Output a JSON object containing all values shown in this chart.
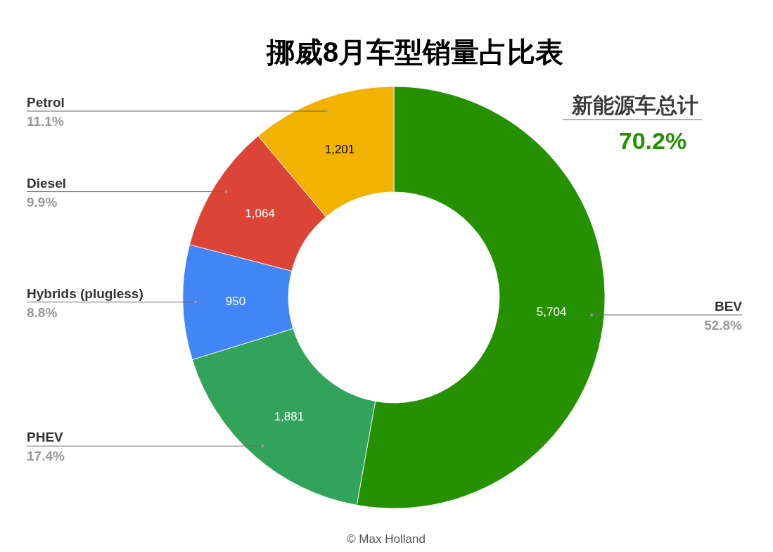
{
  "chart_data": {
    "type": "donut",
    "title": "挪威8月车型销量占比表",
    "categories": [
      "BEV",
      "PHEV",
      "Hybrids (plugless)",
      "Diesel",
      "Petrol"
    ],
    "values": [
      5704,
      1881,
      950,
      1064,
      1201
    ],
    "colors": [
      "#259100",
      "#31a35b",
      "#4285f4",
      "#db4437",
      "#f2b200"
    ],
    "value_labels": [
      "5,704",
      "1,881",
      "950",
      "1,064",
      "1,201"
    ],
    "annotations": [
      {
        "text": "52.8%",
        "x": "BEV"
      },
      {
        "text": "17.4%",
        "x": "PHEV"
      },
      {
        "text": "8.8%",
        "x": "Hybrids (plugless)"
      },
      {
        "text": "9.9%",
        "x": "Diesel"
      },
      {
        "text": "11.1%",
        "x": "Petrol"
      },
      "新能源车总计",
      "70.2%",
      "© Max Holland"
    ]
  }
}
